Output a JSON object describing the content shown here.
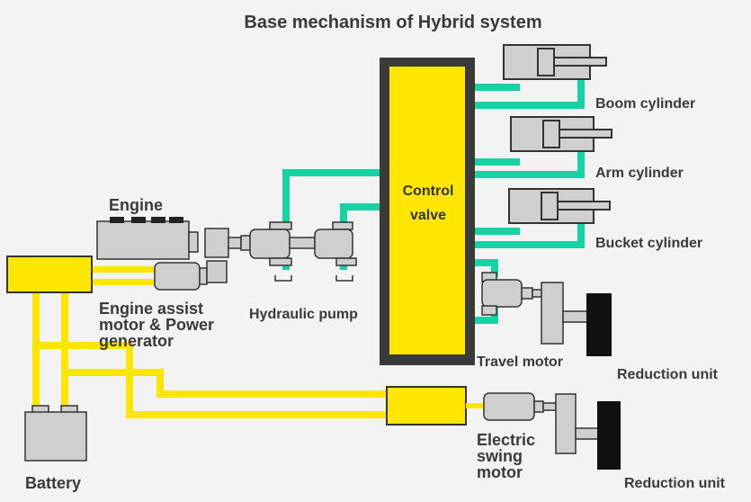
{
  "title": "Base mechanism of Hybrid system",
  "labels": {
    "control_valve_line1": "Control",
    "control_valve_line2": "valve",
    "boom_cylinder": "Boom cylinder",
    "arm_cylinder": "Arm cylinder",
    "bucket_cylinder": "Bucket cylinder",
    "engine": "Engine",
    "engine_assist_line1": "Engine assist",
    "engine_assist_line2": "motor & Power",
    "engine_assist_line3": "generator",
    "hydraulic_pump": "Hydraulic pump",
    "travel_motor": "Travel motor",
    "reduction_unit_1": "Reduction unit",
    "reduction_unit_2": "Reduction unit",
    "electric_swing_line1": "Electric",
    "electric_swing_line2": "swing",
    "electric_swing_line3": "motor",
    "battery": "Battery"
  },
  "colors": {
    "background": "#f3f3f3",
    "electric_line": "#ffe600",
    "hydraulic_line": "#17d3a3",
    "component_fill": "#cfcfcf",
    "outline": "#333333",
    "control_valve_frame": "#3a3a3a",
    "reduction_block": "#111111"
  }
}
